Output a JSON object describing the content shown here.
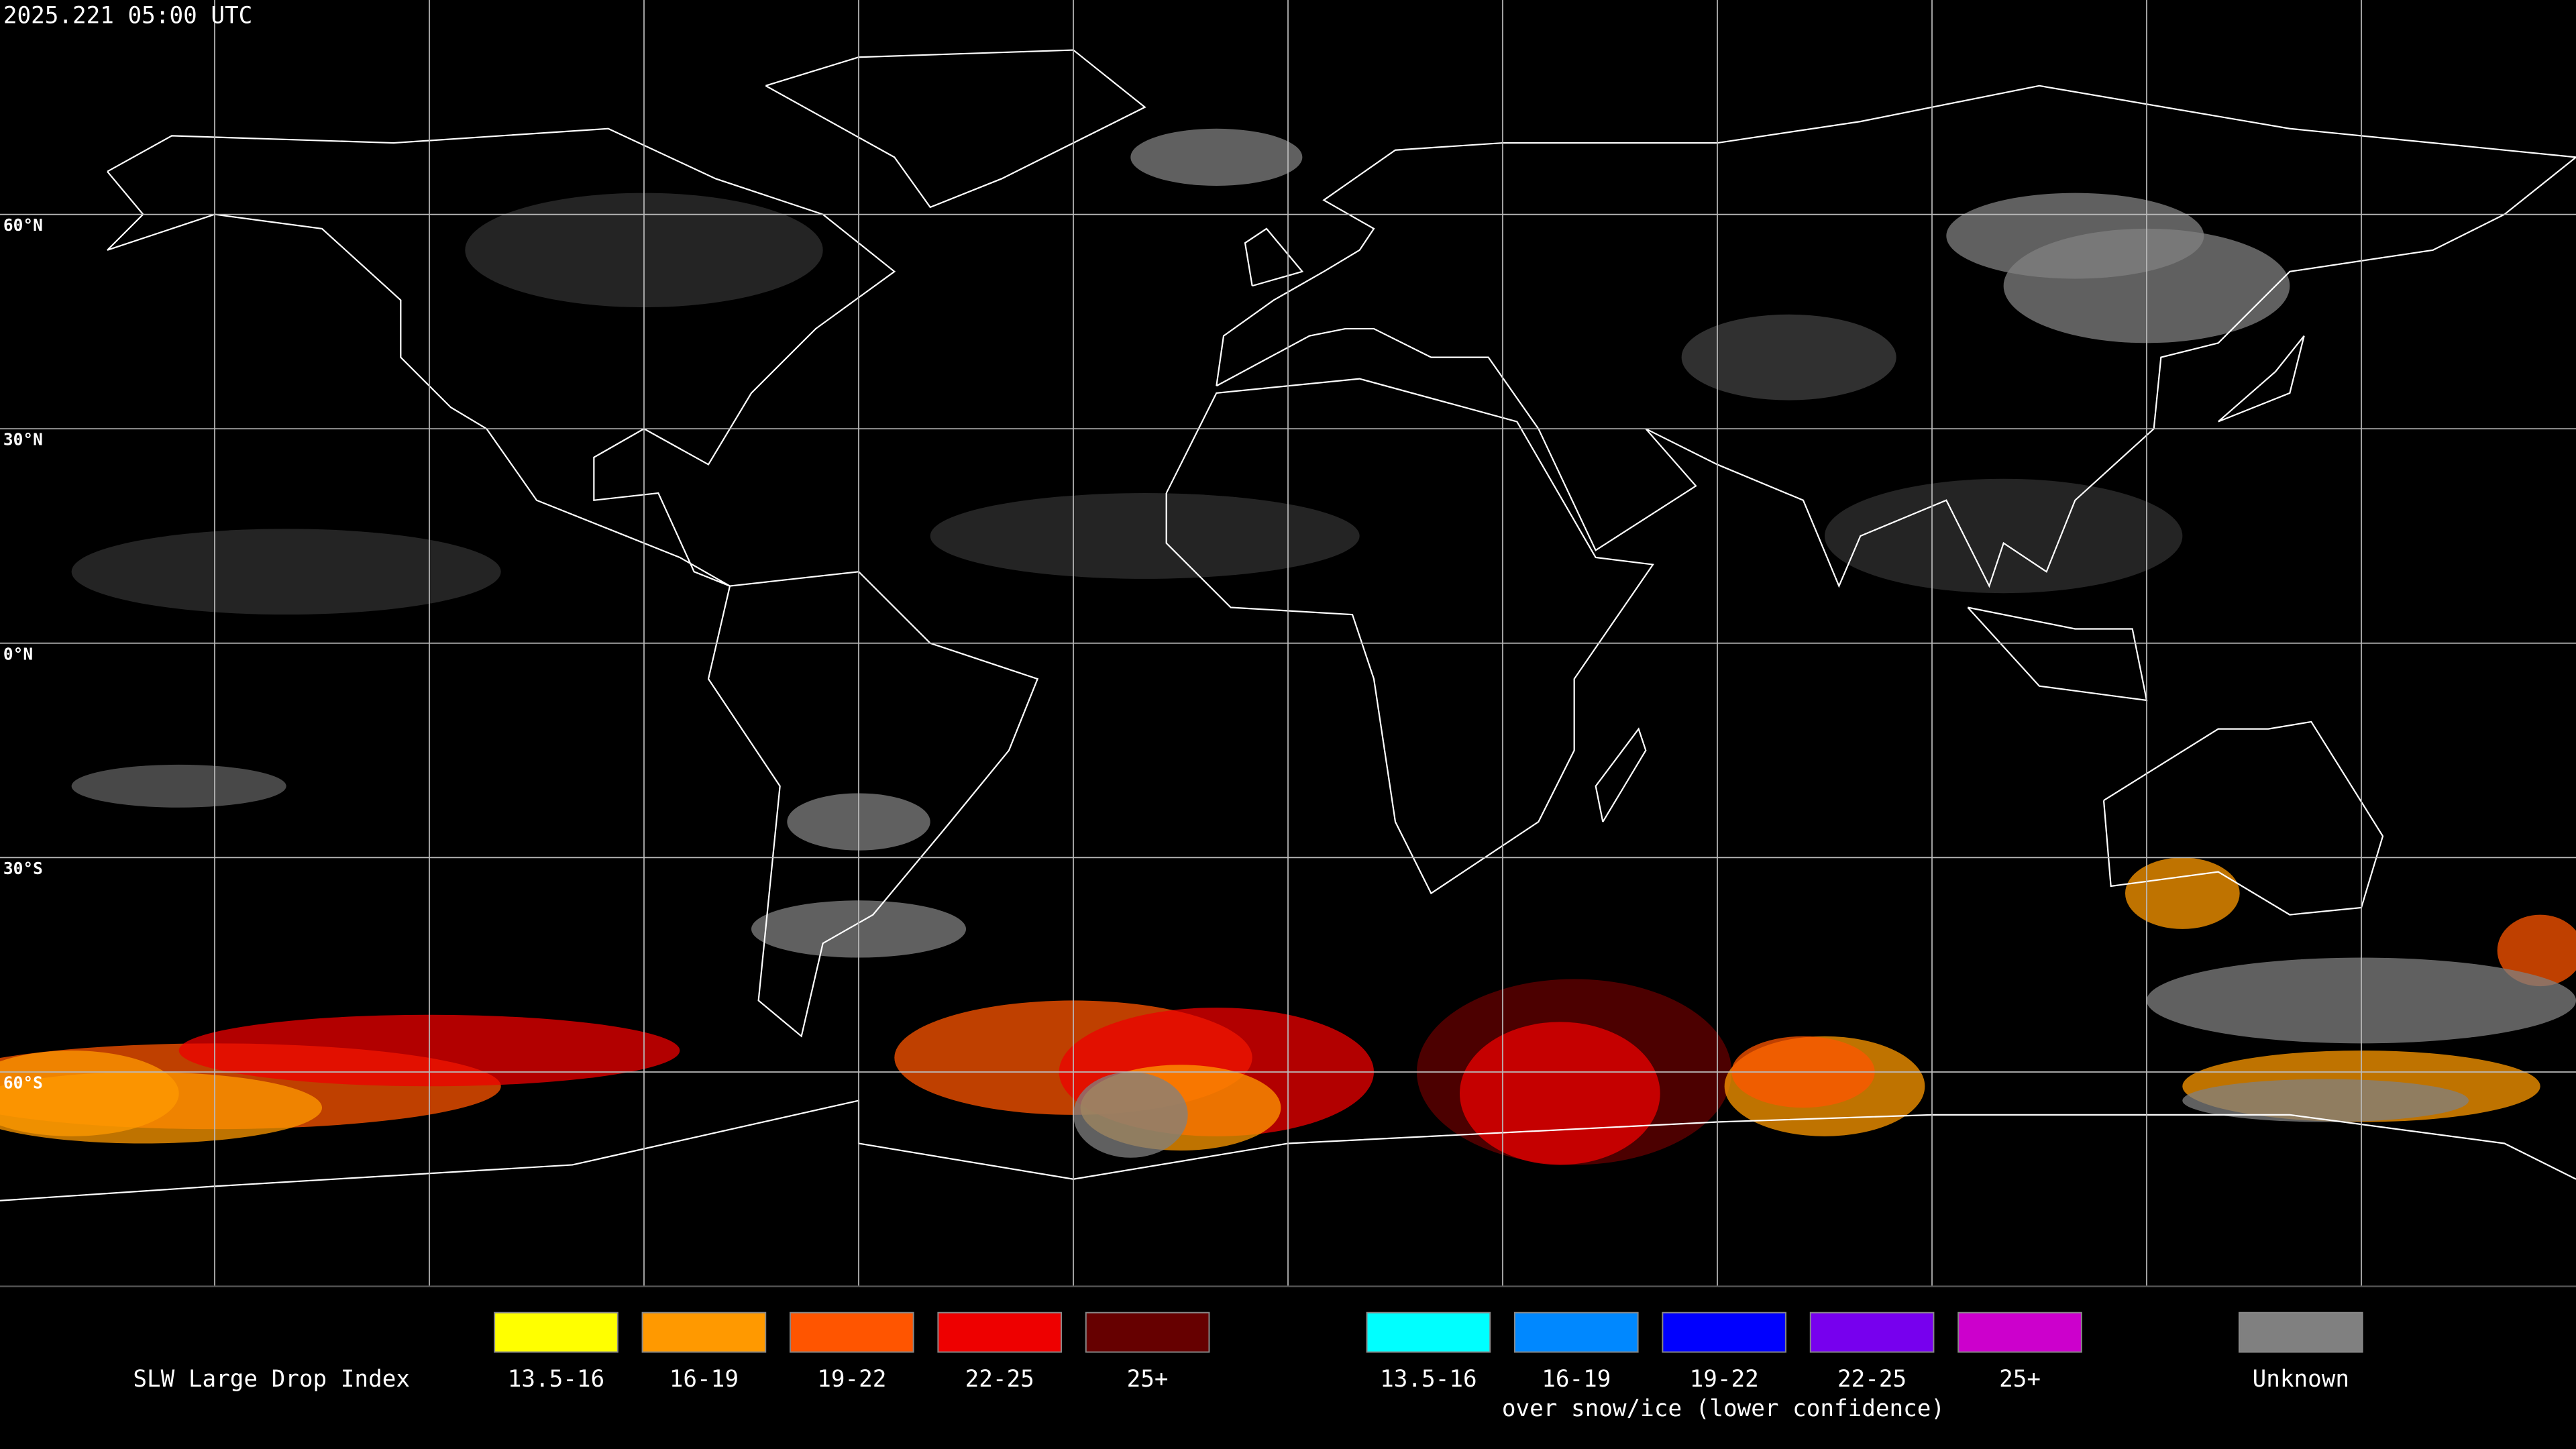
{
  "header": {
    "timestamp": "2025.221 05:00 UTC"
  },
  "map": {
    "lat_labels": [
      "60°N",
      "30°N",
      "0°N",
      "30°S",
      "60°S"
    ]
  },
  "legend": {
    "title": "SLW Large Drop Index",
    "liquid": [
      {
        "label": "13.5-16",
        "color": "#ffff00"
      },
      {
        "label": "16-19",
        "color": "#ff9900"
      },
      {
        "label": "19-22",
        "color": "#ff5500"
      },
      {
        "label": "22-25",
        "color": "#ee0000"
      },
      {
        "label": "25+",
        "color": "#660000"
      }
    ],
    "ice": [
      {
        "label": "13.5-16",
        "color": "#00ffff"
      },
      {
        "label": "16-19",
        "color": "#0088ff"
      },
      {
        "label": "19-22",
        "color": "#0000ff"
      },
      {
        "label": "22-25",
        "color": "#7700ee"
      },
      {
        "label": "25+",
        "color": "#cc00cc"
      }
    ],
    "ice_note": "over snow/ice (lower confidence)",
    "unknown": {
      "label": "Unknown",
      "color": "#808080"
    }
  }
}
